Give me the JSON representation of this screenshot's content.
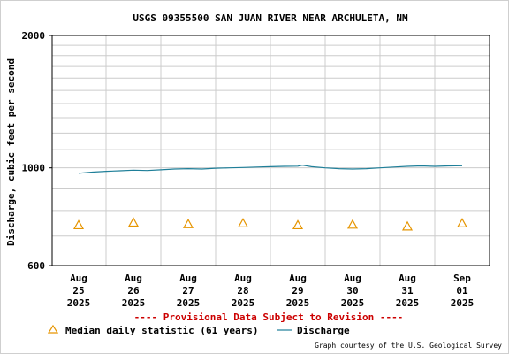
{
  "chart_data": {
    "type": "line",
    "title": "USGS 09355500 SAN JUAN RIVER NEAR ARCHULETA, NM",
    "ylabel": "Discharge, cubic feet per second",
    "xlabel": "",
    "y_scale": "log",
    "ylim": [
      600,
      2000
    ],
    "y_tick_labels": [
      {
        "value": 2000,
        "label": "2000"
      },
      {
        "value": 1000,
        "label": "1000"
      },
      {
        "value": 600,
        "label": "600"
      }
    ],
    "y_gridlines": [
      700,
      800,
      900,
      1000,
      1100,
      1200,
      1300,
      1400,
      1500,
      1600,
      1700,
      1800,
      1900,
      2000
    ],
    "x_range": [
      "2025-08-25",
      "2025-09-01"
    ],
    "x_ticks": [
      {
        "date": "2025-08-25",
        "lines": [
          "Aug",
          "25",
          "2025"
        ]
      },
      {
        "date": "2025-08-26",
        "lines": [
          "Aug",
          "26",
          "2025"
        ]
      },
      {
        "date": "2025-08-27",
        "lines": [
          "Aug",
          "27",
          "2025"
        ]
      },
      {
        "date": "2025-08-28",
        "lines": [
          "Aug",
          "28",
          "2025"
        ]
      },
      {
        "date": "2025-08-29",
        "lines": [
          "Aug",
          "29",
          "2025"
        ]
      },
      {
        "date": "2025-08-30",
        "lines": [
          "Aug",
          "30",
          "2025"
        ]
      },
      {
        "date": "2025-08-31",
        "lines": [
          "Aug",
          "31",
          "2025"
        ]
      },
      {
        "date": "2025-09-01",
        "lines": [
          "Sep",
          "01",
          "2025"
        ]
      }
    ],
    "grid": true,
    "series": [
      {
        "name": "Discharge",
        "type": "line",
        "color": "#1f7f99",
        "points": [
          [
            "2025-08-25 00:00",
            972
          ],
          [
            "2025-08-25 06:00",
            978
          ],
          [
            "2025-08-25 12:00",
            982
          ],
          [
            "2025-08-25 18:00",
            985
          ],
          [
            "2025-08-26 00:00",
            988
          ],
          [
            "2025-08-26 06:00",
            986
          ],
          [
            "2025-08-26 12:00",
            990
          ],
          [
            "2025-08-26 18:00",
            994
          ],
          [
            "2025-08-27 00:00",
            996
          ],
          [
            "2025-08-27 06:00",
            994
          ],
          [
            "2025-08-27 12:00",
            998
          ],
          [
            "2025-08-27 18:00",
            1000
          ],
          [
            "2025-08-28 00:00",
            1002
          ],
          [
            "2025-08-28 06:00",
            1004
          ],
          [
            "2025-08-28 12:00",
            1006
          ],
          [
            "2025-08-28 18:00",
            1008
          ],
          [
            "2025-08-29 00:00",
            1009
          ],
          [
            "2025-08-29 02:00",
            1014
          ],
          [
            "2025-08-29 06:00",
            1006
          ],
          [
            "2025-08-29 12:00",
            1000
          ],
          [
            "2025-08-29 18:00",
            996
          ],
          [
            "2025-08-30 00:00",
            994
          ],
          [
            "2025-08-30 06:00",
            996
          ],
          [
            "2025-08-30 12:00",
            1000
          ],
          [
            "2025-08-30 18:00",
            1004
          ],
          [
            "2025-08-31 00:00",
            1008
          ],
          [
            "2025-08-31 06:00",
            1010
          ],
          [
            "2025-08-31 12:00",
            1008
          ],
          [
            "2025-08-31 18:00",
            1010
          ],
          [
            "2025-09-01 00:00",
            1011
          ]
        ]
      },
      {
        "name": "Median daily statistic (61 years)",
        "type": "marker",
        "marker": "triangle",
        "color": "#e69500",
        "points": [
          [
            "2025-08-25",
            741
          ],
          [
            "2025-08-26",
            751
          ],
          [
            "2025-08-27",
            745
          ],
          [
            "2025-08-28",
            748
          ],
          [
            "2025-08-29",
            741
          ],
          [
            "2025-08-30",
            743
          ],
          [
            "2025-08-31",
            736
          ],
          [
            "2025-09-01",
            748
          ]
        ]
      }
    ],
    "legend_position": "bottom-left",
    "legend": [
      {
        "label": "Median daily statistic (61 years)",
        "symbol": "triangle",
        "color": "#e69500"
      },
      {
        "label": "Discharge",
        "symbol": "line",
        "color": "#1f7f99"
      }
    ],
    "annotations": [
      {
        "text": "---- Provisional Data Subject to Revision ----",
        "color": "#cc0000"
      },
      {
        "text": "Graph courtesy of the U.S. Geological Survey",
        "color": "#000000"
      }
    ]
  }
}
